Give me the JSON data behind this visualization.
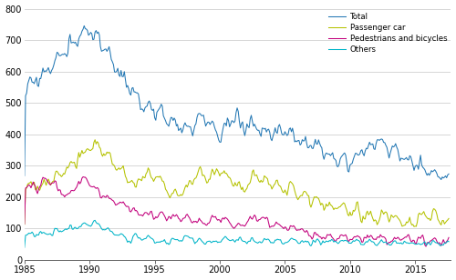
{
  "title": "",
  "ylabel": "",
  "xlabel": "",
  "xlim": [
    1985.0,
    2017.75
  ],
  "ylim": [
    0,
    800
  ],
  "yticks": [
    0,
    100,
    200,
    300,
    400,
    500,
    600,
    700,
    800
  ],
  "xticks": [
    1985,
    1990,
    1995,
    2000,
    2005,
    2010,
    2015
  ],
  "colors": {
    "Total": "#2478b4",
    "Passenger car": "#b5c200",
    "Pedestrians and bicycles": "#c2007c",
    "Others": "#00b4c8"
  },
  "legend_labels": [
    "Total",
    "Passenger car",
    "Pedestrians and bicycles",
    "Others"
  ],
  "background_color": "#ffffff",
  "grid_color": "#d0d0d0",
  "linewidth": 0.75
}
